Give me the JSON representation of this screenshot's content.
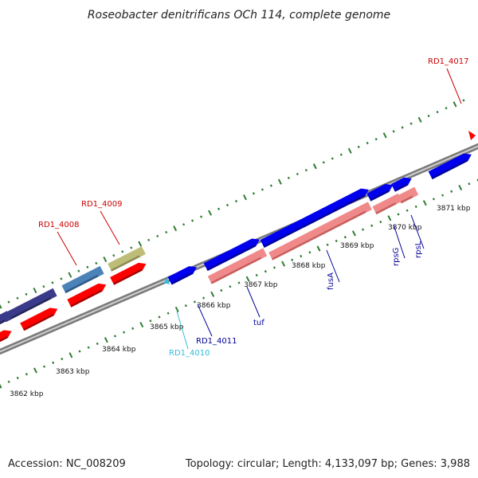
{
  "title": "Roseobacter denitrificans OCh 114, complete genome",
  "footer": {
    "accession": "Accession: NC_008209",
    "summary": "Topology: circular; Length: 4,133,097 bp; Genes: 3,988"
  },
  "colors": {
    "backbone": "#888888",
    "dot_ticks": "#2e7d32",
    "major_ticks": "#2e7d32",
    "reverse_cds": "#ff0000",
    "forward_cds": "#0000ee",
    "rrna": "#f08a8a",
    "gray_feature": "#bdbd78",
    "steel_feature": "#4b82b8",
    "navy_feature": "#3a3a8a",
    "label_red": "#cc0000",
    "label_blue": "#000099",
    "label_cyan": "#33bbdd"
  },
  "ruler": {
    "labels": [
      "3862 kbp",
      "3863 kbp",
      "3864 kbp",
      "3865 kbp",
      "3866 kbp",
      "3867 kbp",
      "3868 kbp",
      "3869 kbp",
      "3870 kbp",
      "3871 kbp"
    ]
  },
  "gene_labels": [
    {
      "text": "RD1_4008",
      "color": "label_red"
    },
    {
      "text": "RD1_4009",
      "color": "label_red"
    },
    {
      "text": "RD1_4010",
      "color": "label_cyan"
    },
    {
      "text": "RD1_4011",
      "color": "label_blue"
    },
    {
      "text": "tuf",
      "color": "label_blue"
    },
    {
      "text": "fusA",
      "color": "label_blue"
    },
    {
      "text": "rpsG",
      "color": "label_blue"
    },
    {
      "text": "rpsL",
      "color": "label_blue"
    },
    {
      "text": "RD1_4017",
      "color": "label_red"
    }
  ]
}
